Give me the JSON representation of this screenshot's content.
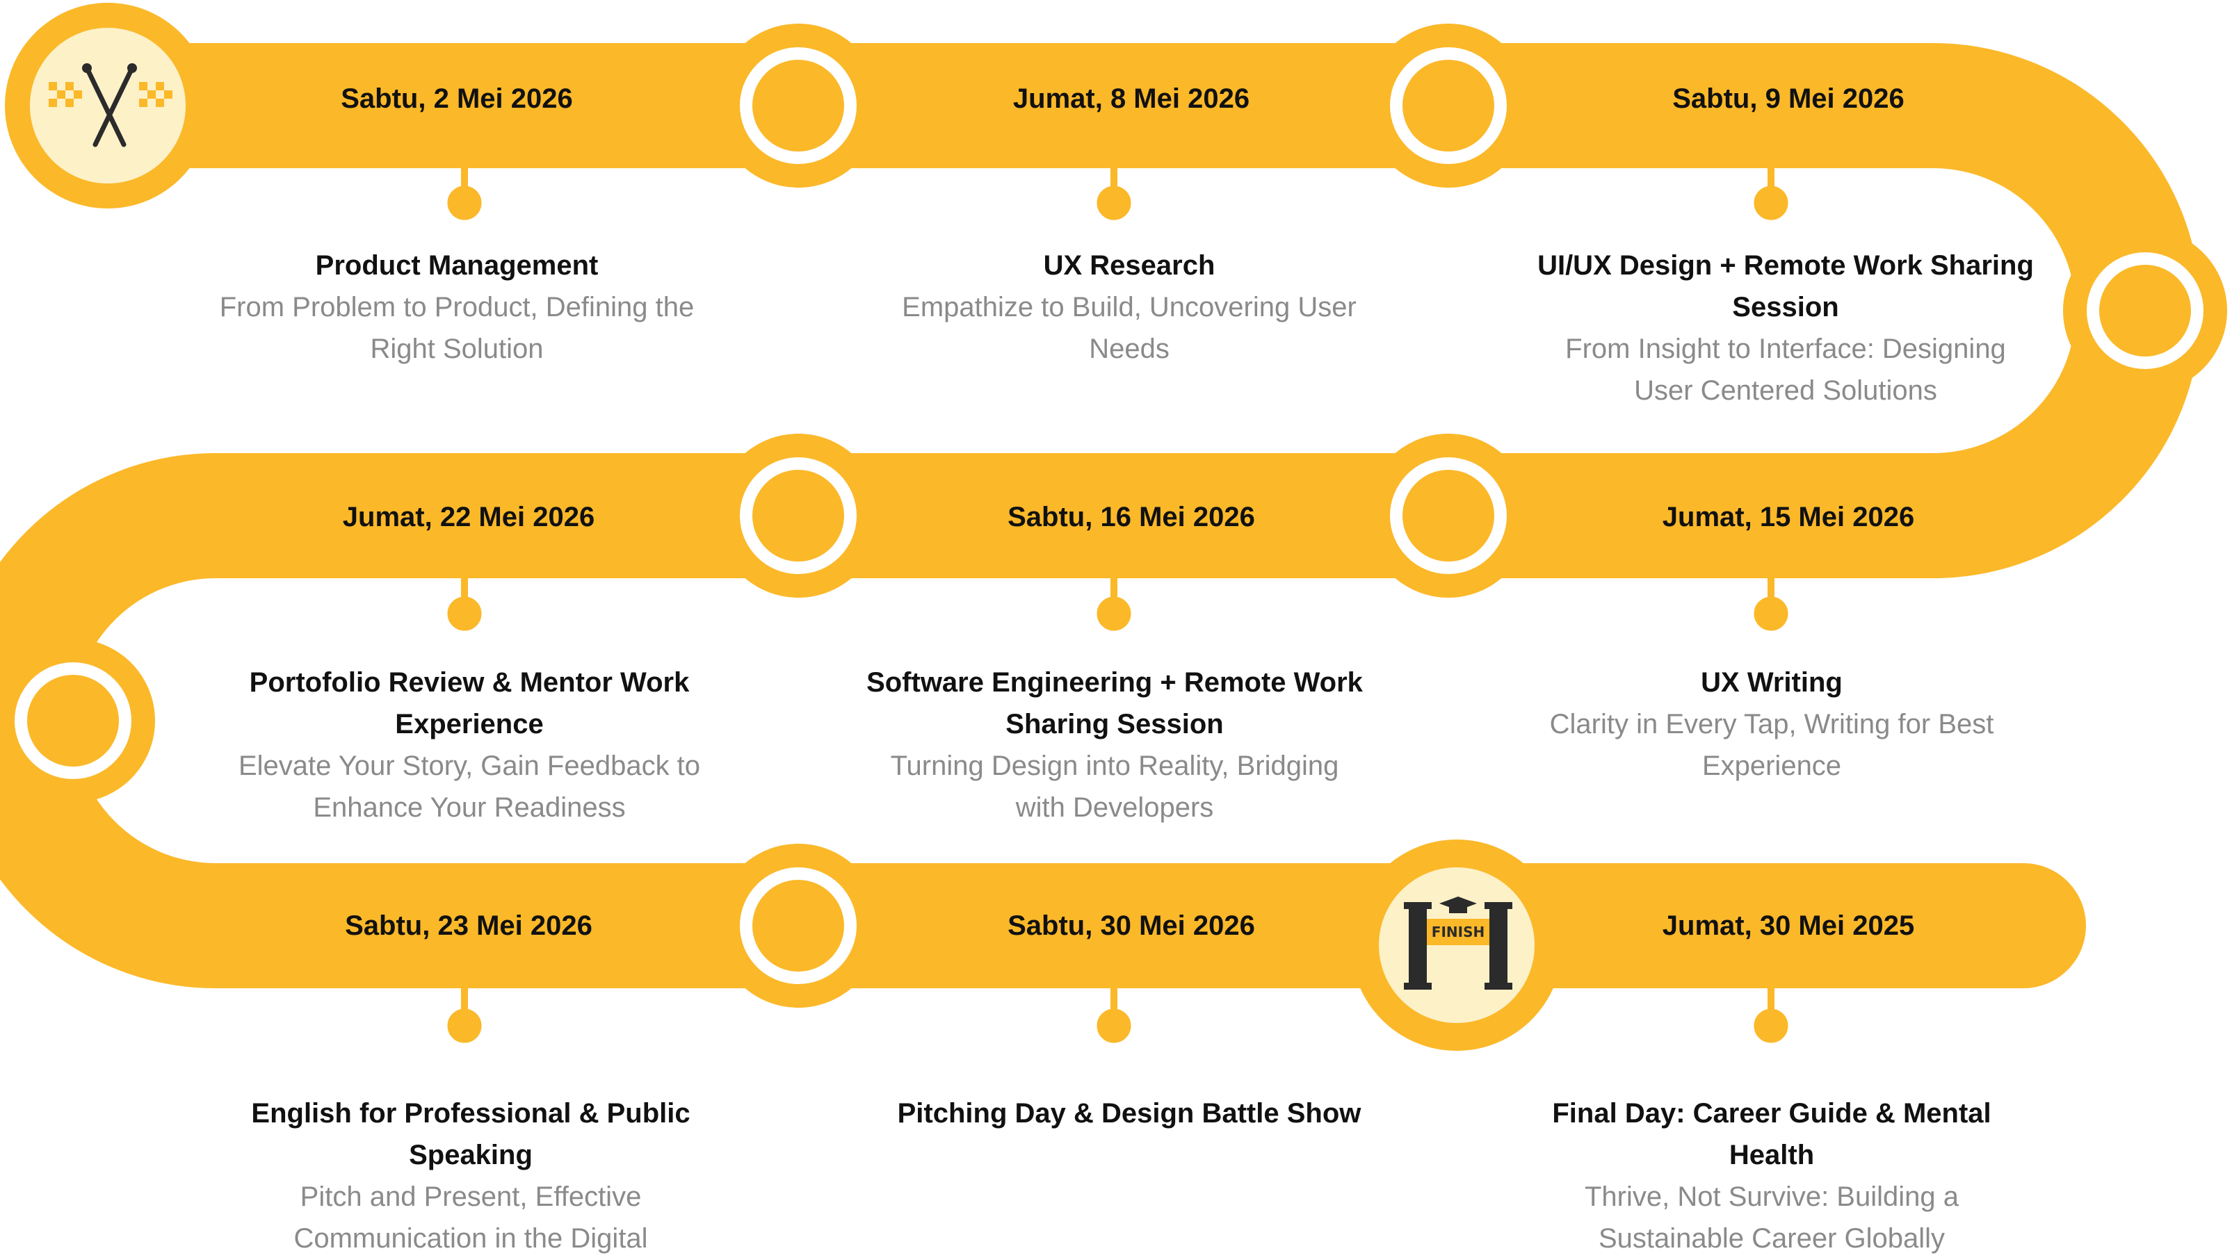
{
  "theme": {
    "track": "#FBB829",
    "ring": "#FFFFFF",
    "badge_bg": "#FDF1C8",
    "dark": "#2B2B2B"
  },
  "start_icon": "checkered-flags-icon",
  "finish_icon": "finish-gate-icon",
  "finish_label": "FINISH",
  "sessions": [
    {
      "date": "Sabtu, 2 Mei 2026",
      "title": "Product Management",
      "desc": "From Problem to Product, Defining the Right Solution"
    },
    {
      "date": "Jumat, 8 Mei 2026",
      "title": "UX Research",
      "desc": "Empathize to Build, Uncovering User Needs"
    },
    {
      "date": "Sabtu, 9 Mei 2026",
      "title": "UI/UX Design + Remote Work Sharing Session",
      "desc": "From Insight to Interface: Designing User Centered Solutions"
    },
    {
      "date": "Jumat, 15 Mei 2026",
      "title": "UX Writing",
      "desc": "Clarity in Every Tap, Writing for Best Experience"
    },
    {
      "date": "Sabtu, 16 Mei 2026",
      "title": "Software Engineering + Remote Work Sharing Session",
      "desc": "Turning Design into Reality, Bridging with Developers"
    },
    {
      "date": "Jumat, 22 Mei 2026",
      "title": "Portofolio Review & Mentor Work Experience",
      "desc": "Elevate Your Story, Gain Feedback to Enhance Your Readiness"
    },
    {
      "date": "Sabtu, 23 Mei 2026",
      "title": "English for Professional & Public Speaking",
      "desc": "Pitch and Present, Effective Communication in the Digital"
    },
    {
      "date": "Sabtu, 30 Mei 2026",
      "title": "Pitching Day & Design Battle Show",
      "desc": ""
    },
    {
      "date": "Jumat, 30 Mei 2025",
      "title": "Final Day: Career Guide & Mental Health",
      "desc": "Thrive, Not Survive: Building a Sustainable Career Globally"
    }
  ]
}
